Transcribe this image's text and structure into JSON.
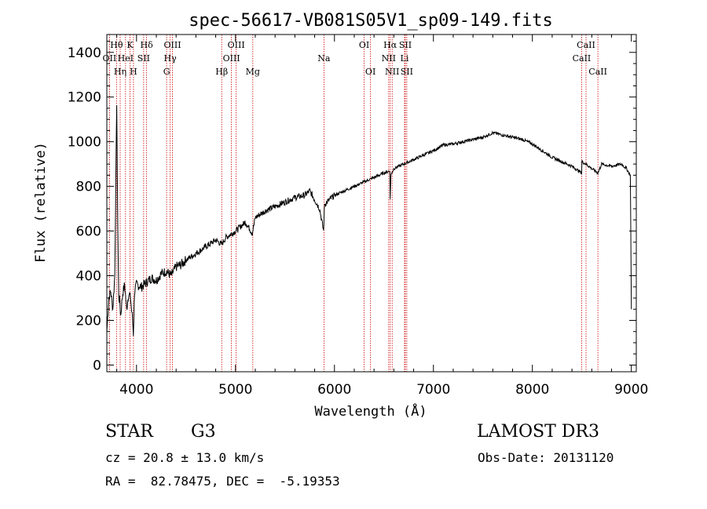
{
  "chart_data": {
    "type": "line",
    "title": "spec-56617-VB081S05V1_sp09-149.fits",
    "xlabel": "Wavelength (Å)",
    "ylabel": "Flux (relative)",
    "xlim": [
      3700,
      9050
    ],
    "ylim": [
      -30,
      1480
    ],
    "xticks": [
      4000,
      5000,
      6000,
      7000,
      8000,
      9000
    ],
    "yticks": [
      0,
      200,
      400,
      600,
      800,
      1000,
      1200,
      1400
    ],
    "line_color": "#000000",
    "marker_color": "#cc0000",
    "series": [
      {
        "name": "spectrum",
        "x": [
          3700,
          3720,
          3740,
          3760,
          3780,
          3800,
          3810,
          3820,
          3830,
          3840,
          3860,
          3880,
          3900,
          3920,
          3940,
          3960,
          3968,
          3980,
          4000,
          4050,
          4100,
          4150,
          4200,
          4250,
          4300,
          4350,
          4400,
          4450,
          4500,
          4600,
          4700,
          4800,
          4860,
          4900,
          5000,
          5100,
          5170,
          5200,
          5300,
          5400,
          5500,
          5600,
          5700,
          5750,
          5800,
          5850,
          5890,
          5900,
          5950,
          6000,
          6100,
          6200,
          6300,
          6400,
          6500,
          6560,
          6563,
          6570,
          6600,
          6700,
          6800,
          6900,
          7000,
          7100,
          7200,
          7300,
          7400,
          7500,
          7600,
          7700,
          7800,
          7900,
          8000,
          8100,
          8200,
          8300,
          8400,
          8498,
          8500,
          8542,
          8600,
          8662,
          8700,
          8800,
          8900,
          8950,
          8990,
          9000
        ],
        "y": [
          150,
          300,
          330,
          250,
          400,
          1180,
          650,
          300,
          290,
          220,
          320,
          360,
          250,
          320,
          300,
          200,
          140,
          330,
          360,
          350,
          370,
          390,
          380,
          410,
          420,
          400,
          440,
          450,
          470,
          500,
          530,
          560,
          540,
          570,
          600,
          640,
          590,
          660,
          690,
          710,
          730,
          750,
          760,
          780,
          740,
          700,
          600,
          720,
          740,
          760,
          780,
          800,
          820,
          840,
          860,
          870,
          740,
          850,
          880,
          900,
          920,
          940,
          960,
          985,
          990,
          1000,
          1010,
          1020,
          1040,
          1030,
          1020,
          1010,
          990,
          960,
          930,
          910,
          890,
          860,
          910,
          900,
          880,
          860,
          900,
          890,
          900,
          880,
          850,
          250
        ]
      }
    ],
    "line_markers": [
      {
        "name": "OII",
        "wl": 3727,
        "tier": 1
      },
      {
        "name": "Hθ",
        "wl": 3798,
        "tier": 0
      },
      {
        "name": "Hη",
        "wl": 3835,
        "tier": 2
      },
      {
        "name": "HeI",
        "wl": 3889,
        "tier": 1
      },
      {
        "name": "K",
        "wl": 3934,
        "tier": 0
      },
      {
        "name": "H",
        "wl": 3969,
        "tier": 2
      },
      {
        "name": "SII",
        "wl": 4072,
        "tier": 1
      },
      {
        "name": "Hδ",
        "wl": 4102,
        "tier": 0
      },
      {
        "name": "G",
        "wl": 4304,
        "tier": 2
      },
      {
        "name": "Hγ",
        "wl": 4340,
        "tier": 1
      },
      {
        "name": "OIII",
        "wl": 4363,
        "tier": 0
      },
      {
        "name": "Hβ",
        "wl": 4861,
        "tier": 2
      },
      {
        "name": "OIII",
        "wl": 4959,
        "tier": 1
      },
      {
        "name": "OIII",
        "wl": 5007,
        "tier": 0
      },
      {
        "name": "Mg",
        "wl": 5175,
        "tier": 2
      },
      {
        "name": "Na",
        "wl": 5894,
        "tier": 1
      },
      {
        "name": "OI",
        "wl": 6300,
        "tier": 0
      },
      {
        "name": "OI",
        "wl": 6364,
        "tier": 2
      },
      {
        "name": "NII",
        "wl": 6548,
        "tier": 1
      },
      {
        "name": "Hα",
        "wl": 6563,
        "tier": 0
      },
      {
        "name": "NII",
        "wl": 6583,
        "tier": 2
      },
      {
        "name": "SII",
        "wl": 6716,
        "tier": 0
      },
      {
        "name": "Li",
        "wl": 6708,
        "tier": 1
      },
      {
        "name": "SII",
        "wl": 6731,
        "tier": 2
      },
      {
        "name": "CaII",
        "wl": 8498,
        "tier": 1
      },
      {
        "name": "CaII",
        "wl": 8542,
        "tier": 0
      },
      {
        "name": "CaII",
        "wl": 8662,
        "tier": 2
      }
    ]
  },
  "info": {
    "object_type": "STAR",
    "subclass": "G3",
    "survey": "LAMOST DR3",
    "cz": "cz = 20.8 ± 13.0 km/s",
    "obs_date": "Obs-Date: 20131120",
    "coords": "RA =  82.78475, DEC =  -5.19353"
  }
}
